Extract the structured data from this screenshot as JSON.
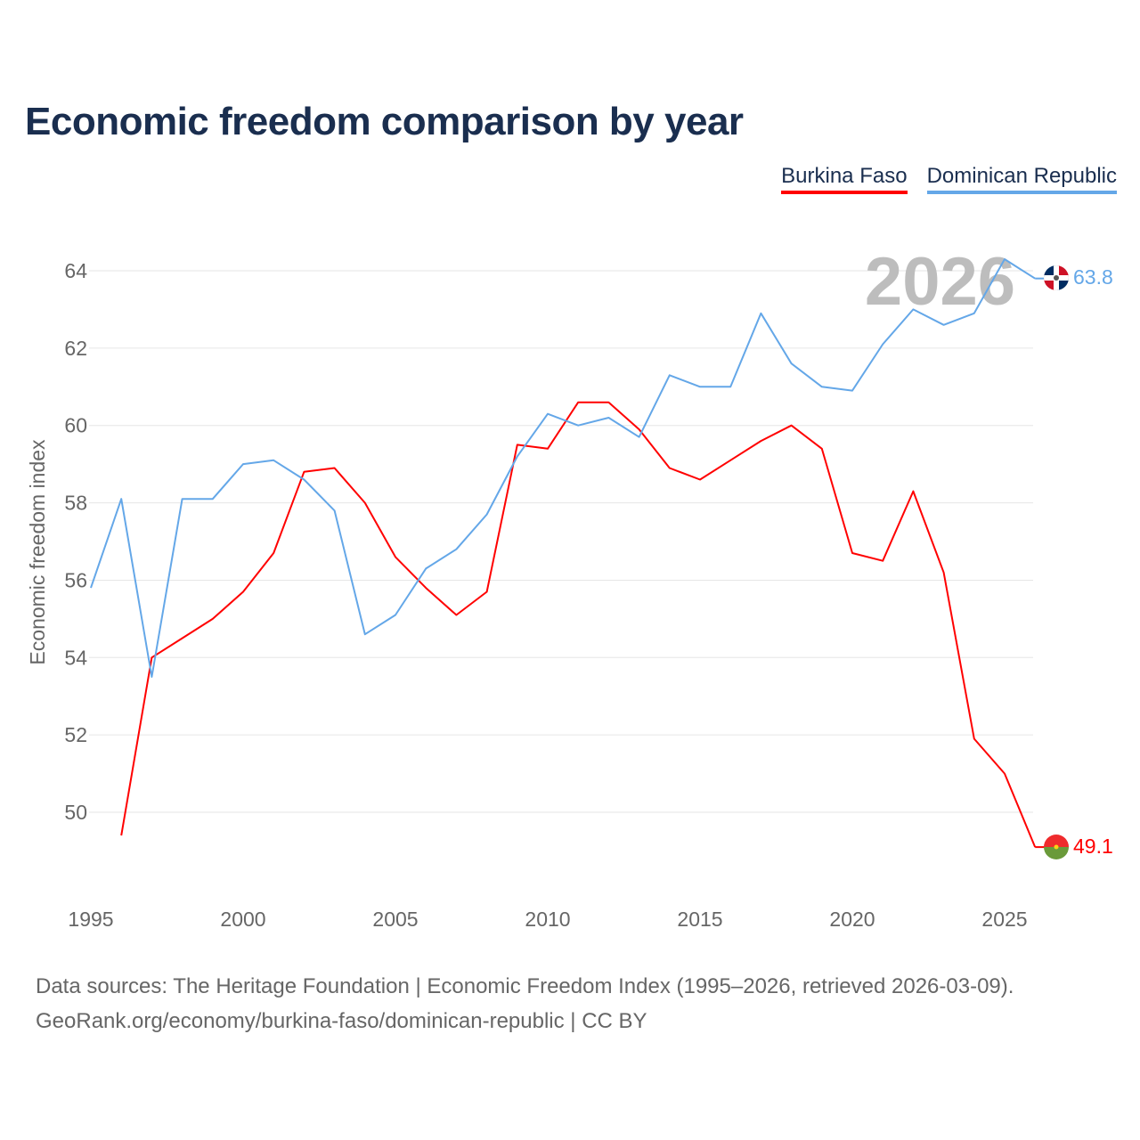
{
  "title": "Economic freedom comparison by year",
  "legend": [
    {
      "name": "Burkina Faso",
      "color": "#ff0000"
    },
    {
      "name": "Dominican Republic",
      "color": "#64a7e8"
    }
  ],
  "footer": {
    "line1": "Data sources: The Heritage Foundation | Economic Freedom Index (1995–2026, retrieved 2026-03-09).",
    "line2": "GeoRank.org/economy/burkina-faso/dominican-republic | CC BY"
  },
  "chart_data": {
    "type": "line",
    "title": "Economic freedom comparison by year",
    "xlabel": "",
    "ylabel": "Economic freedom index",
    "xlim": [
      1995,
      2026
    ],
    "ylim": [
      48,
      65
    ],
    "x_ticks": [
      1995,
      2000,
      2005,
      2010,
      2015,
      2020,
      2025
    ],
    "y_ticks": [
      50,
      52,
      54,
      56,
      58,
      60,
      62,
      64
    ],
    "watermark_year": "2026",
    "grid": true,
    "legend_position": "top-right",
    "series": [
      {
        "name": "Burkina Faso",
        "color": "#ff0000",
        "end_label": "49.1",
        "x": [
          1996,
          1997,
          1998,
          1999,
          2000,
          2001,
          2002,
          2003,
          2004,
          2005,
          2006,
          2007,
          2008,
          2009,
          2010,
          2011,
          2012,
          2013,
          2014,
          2015,
          2016,
          2017,
          2018,
          2019,
          2020,
          2021,
          2022,
          2023,
          2024,
          2025,
          2026
        ],
        "values": [
          49.4,
          54.0,
          54.5,
          55.0,
          55.7,
          56.7,
          58.8,
          58.9,
          58.0,
          56.6,
          55.8,
          55.1,
          55.7,
          59.5,
          59.4,
          60.6,
          60.6,
          59.9,
          58.9,
          58.6,
          59.1,
          59.6,
          60.0,
          59.4,
          56.7,
          56.5,
          58.3,
          56.2,
          51.9,
          51.0,
          49.1
        ]
      },
      {
        "name": "Dominican Republic",
        "color": "#64a7e8",
        "end_label": "63.8",
        "x": [
          1995,
          1996,
          1997,
          1998,
          1999,
          2000,
          2001,
          2002,
          2003,
          2004,
          2005,
          2006,
          2007,
          2008,
          2009,
          2010,
          2011,
          2012,
          2013,
          2014,
          2015,
          2016,
          2017,
          2018,
          2019,
          2020,
          2021,
          2022,
          2023,
          2024,
          2025,
          2026
        ],
        "values": [
          55.8,
          58.1,
          53.5,
          58.1,
          58.1,
          59.0,
          59.1,
          58.6,
          57.8,
          54.6,
          55.1,
          56.3,
          56.8,
          57.7,
          59.2,
          60.3,
          60.0,
          60.2,
          59.7,
          61.3,
          61.0,
          61.0,
          62.9,
          61.6,
          61.0,
          60.9,
          62.1,
          63.0,
          62.6,
          62.9,
          64.3,
          63.8
        ]
      }
    ]
  }
}
